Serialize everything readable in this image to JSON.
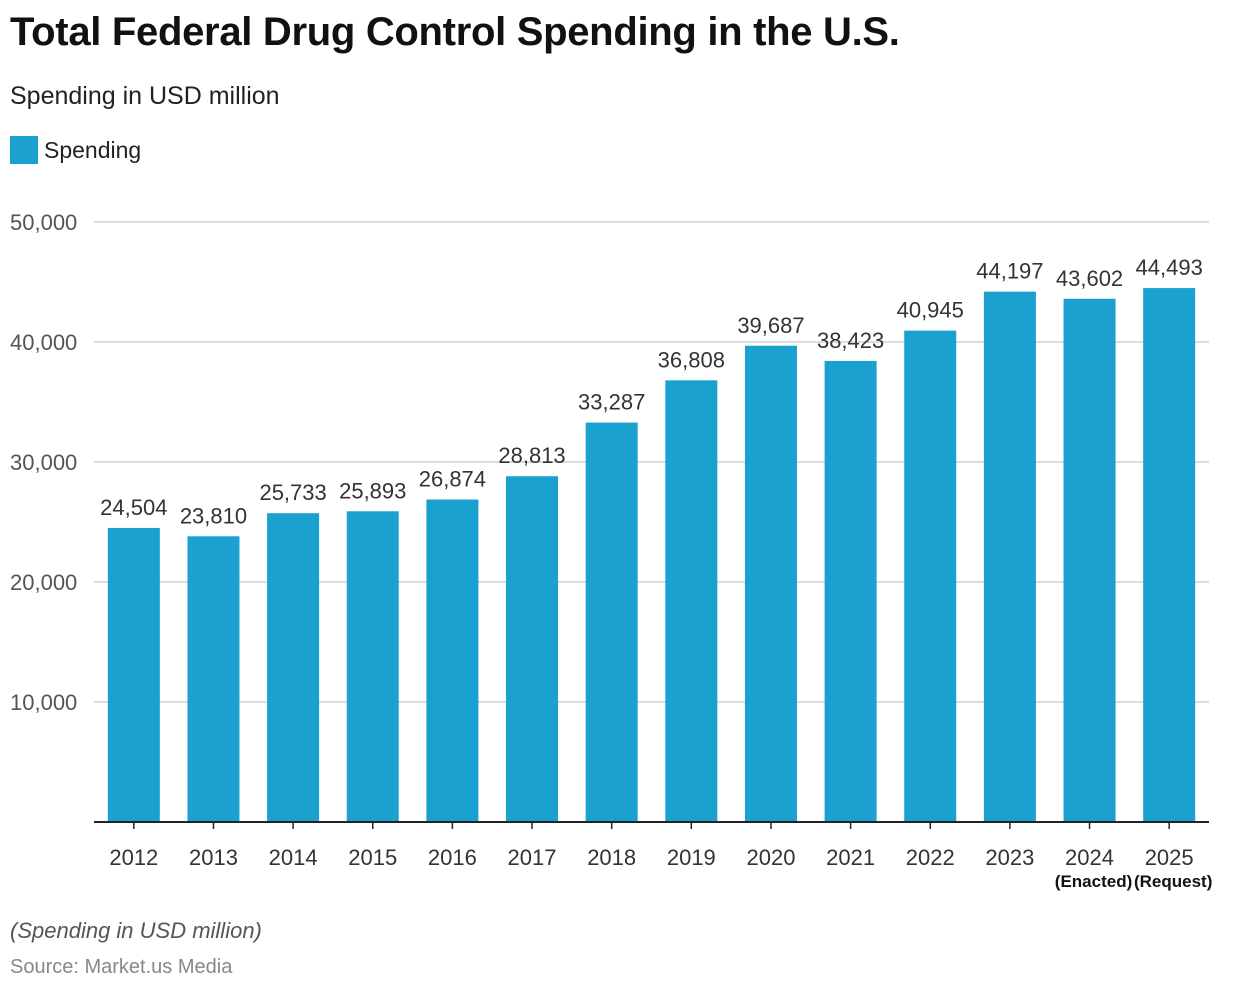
{
  "chart_data": {
    "type": "bar",
    "title": "Total Federal Drug Control Spending in the U.S.",
    "subtitle": "Spending in USD million",
    "legend": {
      "placement": "top-left"
    },
    "categories": [
      "2012",
      "2013",
      "2014",
      "2015",
      "2016",
      "2017",
      "2018",
      "2019",
      "2020",
      "2021",
      "2022",
      "2023",
      "2024",
      "2025"
    ],
    "category_sublabels": [
      "",
      "",
      "",
      "",
      "",
      "",
      "",
      "",
      "",
      "",
      "",
      "",
      "(Enacted)",
      "(Request)"
    ],
    "series": [
      {
        "name": "Spending",
        "color": "#1aa1cf",
        "values": [
          24504,
          23810,
          25733,
          25893,
          26874,
          28813,
          33287,
          36808,
          39687,
          38423,
          40945,
          44197,
          43602,
          44493
        ],
        "labels": [
          "24,504",
          "23,810",
          "25,733",
          "25,893",
          "26,874",
          "28,813",
          "33,287",
          "36,808",
          "39,687",
          "38,423",
          "40,945",
          "44,197",
          "43,602",
          "44,493"
        ]
      }
    ],
    "ylim": [
      0,
      50000
    ],
    "yticks": [
      10000,
      20000,
      30000,
      40000,
      50000
    ],
    "ytick_labels": [
      "10,000",
      "20,000",
      "30,000",
      "40,000",
      "50,000"
    ],
    "grid": true,
    "xlabel": "",
    "ylabel": ""
  },
  "footer": {
    "note": "(Spending in USD million)",
    "source": "Source: Market.us Media"
  }
}
